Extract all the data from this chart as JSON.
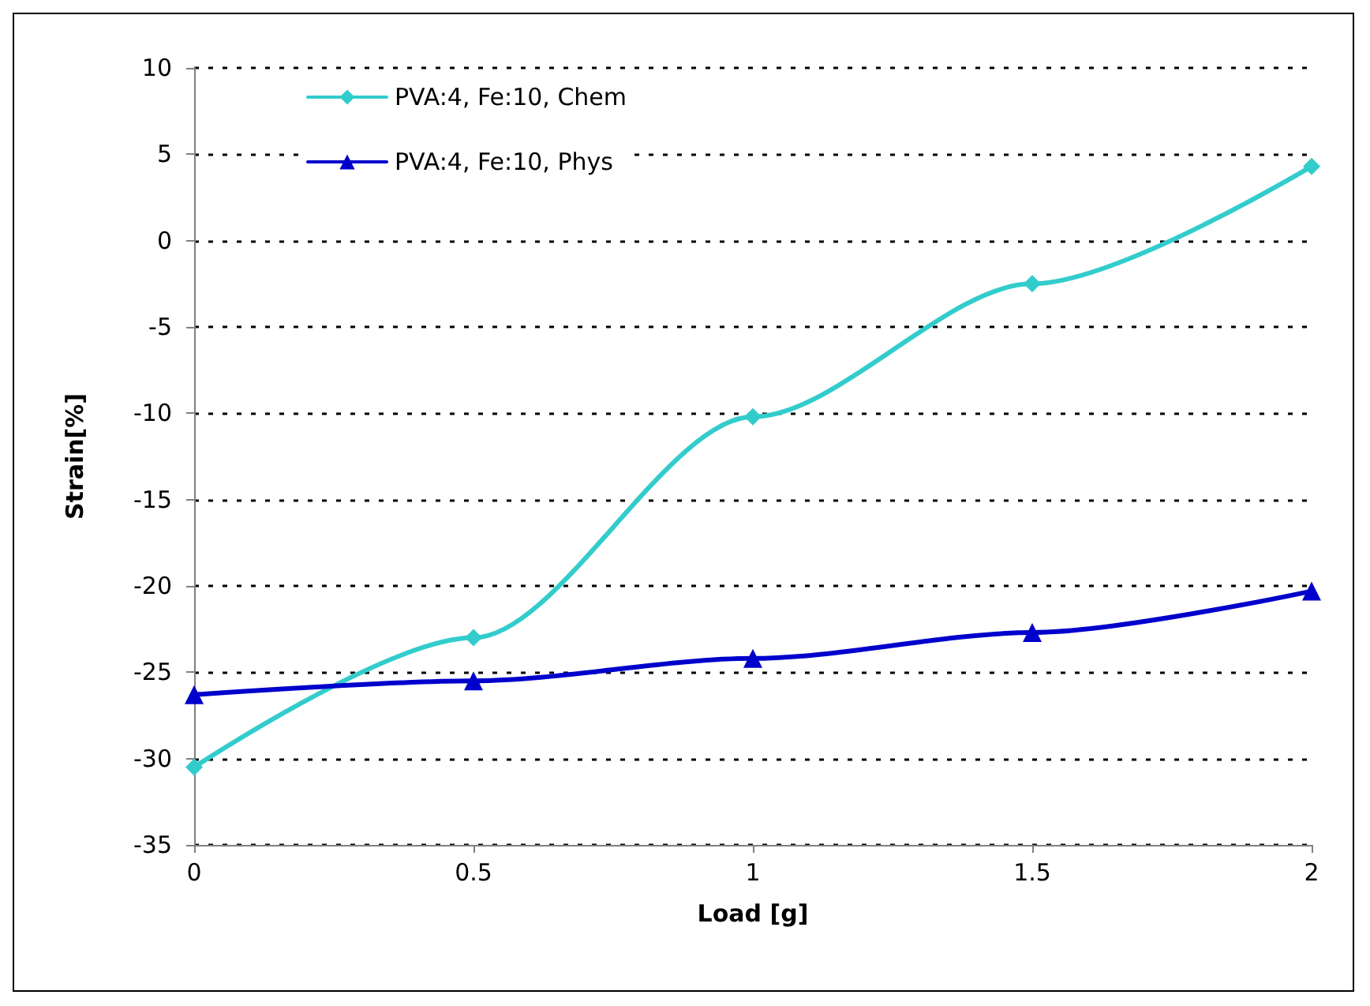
{
  "chart_data": {
    "type": "line",
    "xlabel": "Load [g]",
    "ylabel": "Strain[%]",
    "x": [
      0,
      0.5,
      1,
      1.5,
      2
    ],
    "series": [
      {
        "name": "PVA:4, Fe:10, Chem",
        "color": "#33cccc",
        "marker": "diamond",
        "values": [
          -30.5,
          -23,
          -10.2,
          -2.5,
          4.3
        ]
      },
      {
        "name": "PVA:4, Fe:10, Phys",
        "color": "#0000cc",
        "marker": "triangle",
        "values": [
          -26.3,
          -25.5,
          -24.2,
          -22.7,
          -20.3
        ]
      }
    ],
    "xlim": [
      0,
      2
    ],
    "xticks": [
      0,
      0.5,
      1,
      1.5,
      2
    ],
    "ylim": [
      -35,
      10
    ],
    "yticks": [
      -35,
      -30,
      -25,
      -20,
      -15,
      -10,
      -5,
      0,
      5,
      10
    ],
    "grid": "y",
    "legend": "top left",
    "line_style": "solid"
  }
}
